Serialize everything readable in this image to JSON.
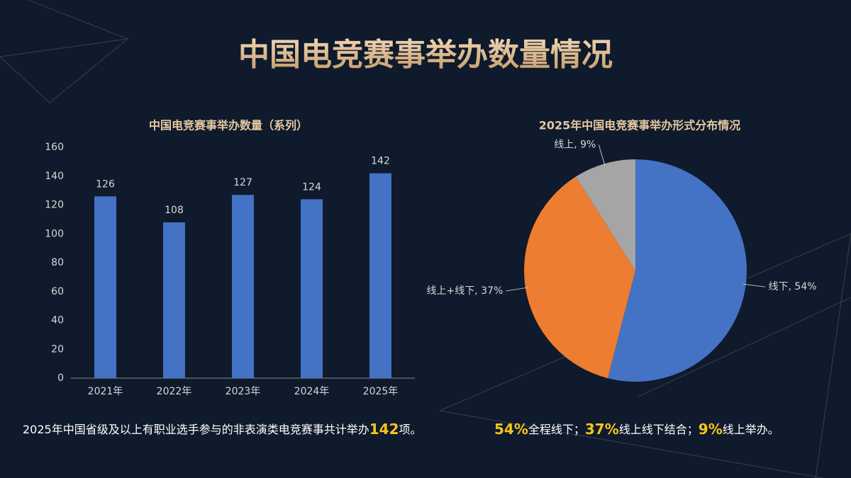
{
  "header": {
    "title": "中国电竞赛事举办数量情况"
  },
  "chart_data": [
    {
      "type": "bar",
      "title": "中国电竞赛事举办数量（系列）",
      "categories": [
        "2021年",
        "2022年",
        "2023年",
        "2024年",
        "2025年"
      ],
      "values": [
        126,
        108,
        127,
        124,
        142
      ],
      "color": "#4472c4",
      "ylim": [
        0,
        160
      ],
      "yticks": [
        0,
        20,
        40,
        60,
        80,
        100,
        120,
        140,
        160
      ],
      "grid": false
    },
    {
      "type": "pie",
      "title": "2025年中国电竞赛事举办形式分布情况",
      "values": [
        54,
        37,
        9
      ],
      "value_labels": [
        "线下, 54%",
        "线上+线下, 37%",
        "线上, 9%"
      ],
      "colors": [
        "#4472c4",
        "#ed7d31",
        "#a5a5a5"
      ]
    }
  ],
  "notes": [
    [
      {
        "text": "2025年中国省级及以上有职业选手参与的非表演类电竞赛事共计举办",
        "emphasis": false
      },
      {
        "text": "142",
        "emphasis": true
      },
      {
        "text": "项。",
        "emphasis": false
      }
    ],
    [
      {
        "text": "54%",
        "emphasis": true
      },
      {
        "text": "全程线下；",
        "emphasis": false
      },
      {
        "text": "37%",
        "emphasis": true
      },
      {
        "text": "线上线下结合；",
        "emphasis": false
      },
      {
        "text": "9%",
        "emphasis": true
      },
      {
        "text": "线上举办。",
        "emphasis": false
      }
    ]
  ]
}
